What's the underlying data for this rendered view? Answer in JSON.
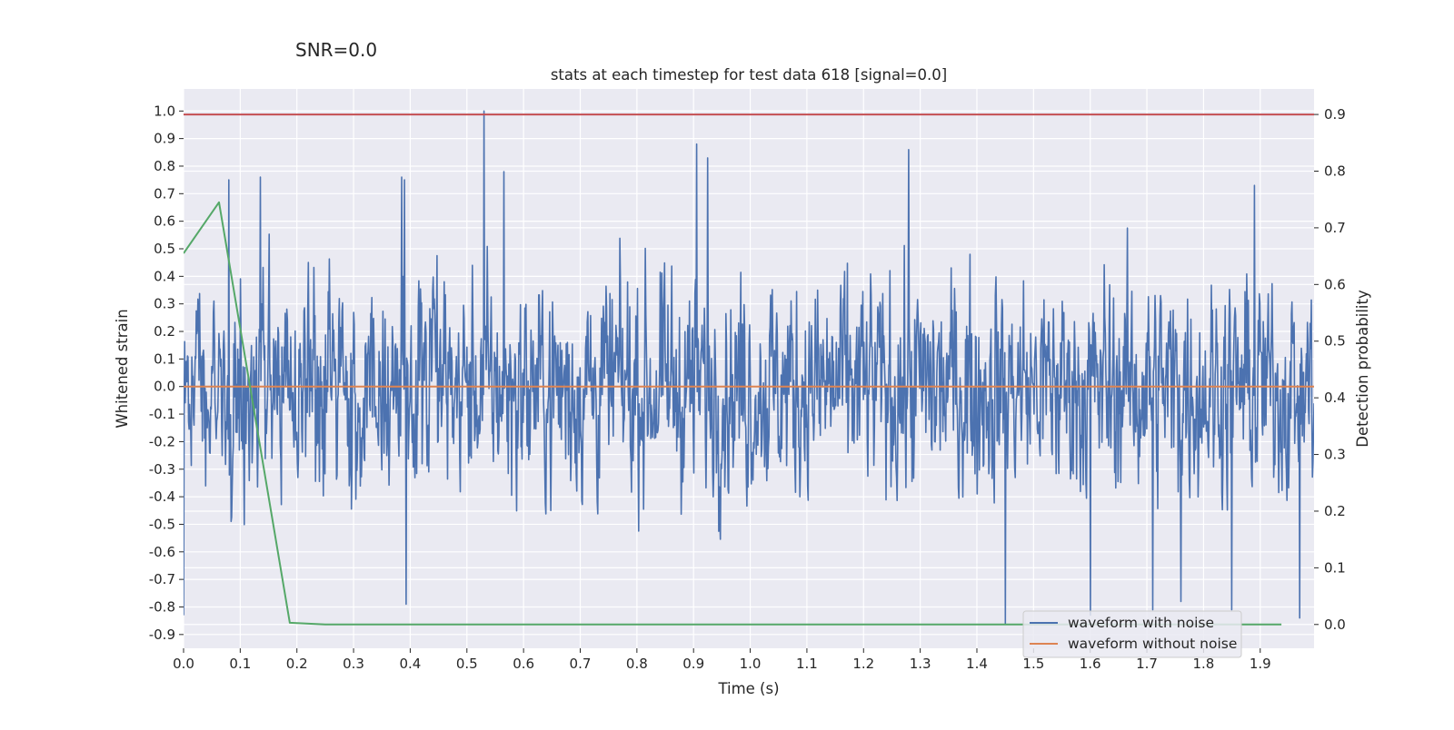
{
  "figure": {
    "suptitle": "SNR=0.0"
  },
  "chart_data": {
    "type": "line",
    "title": "stats at each timestep for test data 618 [signal=0.0]",
    "xlabel": "Time (s)",
    "ylabel": "Whitened strain",
    "y2label": "Detection probability",
    "xlim": [
      0.0,
      1.995
    ],
    "ylim": [
      -0.95,
      1.08
    ],
    "y2lim": [
      -0.042,
      0.945
    ],
    "xticks": [
      0.0,
      0.1,
      0.2,
      0.3,
      0.4,
      0.5,
      0.6,
      0.7,
      0.8,
      0.9,
      1.0,
      1.1,
      1.2,
      1.3,
      1.4,
      1.5,
      1.6,
      1.7,
      1.8,
      1.9
    ],
    "yticks": [
      -0.9,
      -0.8,
      -0.7,
      -0.6,
      -0.5,
      -0.4,
      -0.3,
      -0.2,
      -0.1,
      0.0,
      0.1,
      0.2,
      0.3,
      0.4,
      0.5,
      0.6,
      0.7,
      0.8,
      0.9,
      1.0
    ],
    "y2ticks": [
      0.0,
      0.1,
      0.2,
      0.3,
      0.4,
      0.5,
      0.6,
      0.7,
      0.8,
      0.9
    ],
    "grid": true,
    "legend_position": "lower-right",
    "series": [
      {
        "name": "waveform with noise",
        "axis": "left",
        "color": "#4c72b0",
        "kind": "noise",
        "sample_count": 2048,
        "x_range": [
          0.0,
          1.995
        ],
        "y_range": [
          -0.86,
          1.0
        ],
        "peaks": [
          {
            "x": 0.53,
            "y": 1.0
          },
          {
            "x": 0.905,
            "y": 0.88
          },
          {
            "x": 1.28,
            "y": 0.86
          },
          {
            "x": 0.925,
            "y": 0.83
          },
          {
            "x": 0.565,
            "y": 0.78
          },
          {
            "x": 0.135,
            "y": 0.76
          },
          {
            "x": 0.385,
            "y": 0.76
          },
          {
            "x": 0.39,
            "y": 0.75
          },
          {
            "x": 0.08,
            "y": 0.75
          },
          {
            "x": 1.89,
            "y": 0.73
          },
          {
            "x": 1.45,
            "y": -0.86
          },
          {
            "x": 1.6,
            "y": -0.83
          },
          {
            "x": 0.393,
            "y": -0.79
          },
          {
            "x": 1.71,
            "y": -0.81
          },
          {
            "x": 1.85,
            "y": -0.81
          },
          {
            "x": 1.76,
            "y": -0.78
          },
          {
            "x": 0.0,
            "y": -0.83
          },
          {
            "x": 1.97,
            "y": -0.84
          }
        ]
      },
      {
        "name": "waveform without noise",
        "axis": "left",
        "color": "#dd8452",
        "x": [
          0.0,
          1.995
        ],
        "y": [
          0.0,
          0.0
        ]
      },
      {
        "name": "",
        "axis": "right",
        "color": "#55a868",
        "x": [
          0.0,
          0.0625,
          0.1875,
          0.25,
          1.9375
        ],
        "y": [
          0.655,
          0.745,
          0.003,
          0.0,
          0.0
        ]
      },
      {
        "name": "",
        "axis": "right",
        "color": "#c44e52",
        "x": [
          0.0,
          1.995
        ],
        "y": [
          0.9,
          0.9
        ]
      }
    ]
  }
}
